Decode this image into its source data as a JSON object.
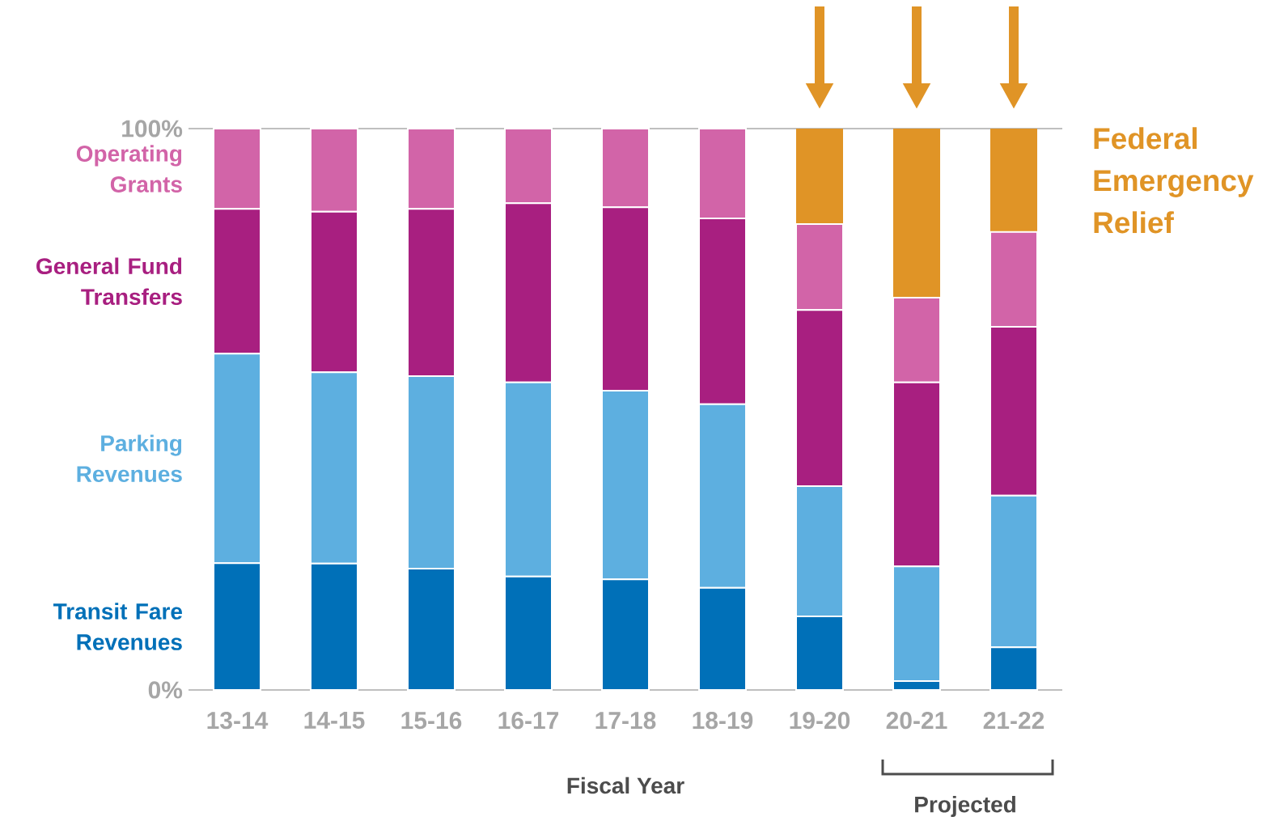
{
  "chart_data": {
    "type": "bar",
    "stacked": true,
    "xlabel": "Fiscal Year",
    "categories": [
      "13-14",
      "14-15",
      "15-16",
      "16-17",
      "17-18",
      "18-19",
      "19-20",
      "20-21",
      "21-22"
    ],
    "series": [
      {
        "name": "Transit Fare Revenues",
        "color": "#0070b8",
        "values": [
          22.6,
          22.5,
          21.6,
          20.2,
          19.7,
          18.2,
          13.1,
          1.6,
          7.6
        ]
      },
      {
        "name": "Parking Revenues",
        "color": "#5dafe0",
        "values": [
          37.3,
          34.1,
          34.3,
          34.6,
          33.6,
          32.7,
          23.2,
          20.4,
          27.0
        ]
      },
      {
        "name": "General Fund Transfers",
        "color": "#a81f80",
        "values": [
          25.8,
          28.6,
          29.8,
          31.9,
          32.7,
          33.1,
          31.4,
          32.8,
          30.1
        ]
      },
      {
        "name": "Operating Grants",
        "color": "#d264a8",
        "values": [
          14.3,
          14.8,
          14.3,
          13.3,
          14.0,
          16.0,
          15.3,
          15.1,
          16.9
        ]
      },
      {
        "name": "Federal Emergency Relief",
        "color": "#e09426",
        "values": [
          null,
          null,
          null,
          null,
          null,
          null,
          17.0,
          30.1,
          18.4
        ]
      }
    ],
    "ylim": [
      0,
      100
    ],
    "yticks": [
      {
        "value": 0,
        "label": "0%"
      },
      {
        "value": 100,
        "label": "100%"
      }
    ],
    "annotations": [
      "Projected"
    ]
  }
}
